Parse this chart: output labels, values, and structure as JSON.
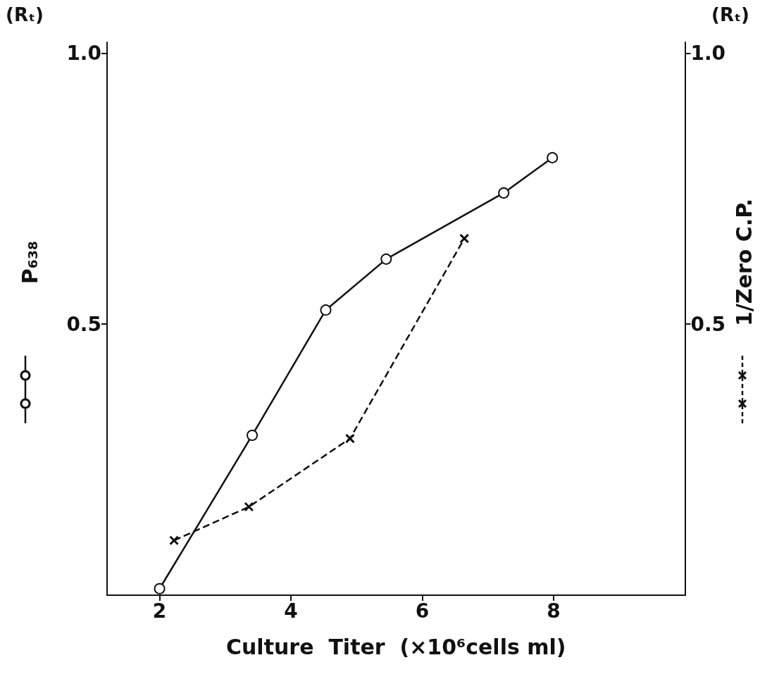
{
  "chart_data": {
    "type": "line",
    "xlabel": "Culture  Titer  (×10⁶cells ml)",
    "ylabel": "P₆₃₈",
    "y2label": "1/Zero C.P.",
    "annotations": [
      "(Rₜ)",
      "(Rₜ)"
    ],
    "xlim": [
      1.2,
      10
    ],
    "xticks": [
      2,
      4,
      6,
      8
    ],
    "ylim": [
      0,
      1.02
    ],
    "yticks": [
      0.5,
      {
        "value": 1,
        "label": "1.0"
      }
    ],
    "y2lim": [
      0,
      1.02
    ],
    "y2ticks": [
      0.5,
      {
        "value": 1,
        "label": "1.0"
      }
    ],
    "grid": false,
    "series": [
      {
        "color": "#111111",
        "marker": "circle",
        "line_style": "solid",
        "x": [
          2,
          3.41,
          4.53,
          5.45,
          7.24,
          7.98
        ],
        "values": [
          0.012,
          0.295,
          0.526,
          0.62,
          0.742,
          0.807
        ]
      },
      {
        "color": "#111111",
        "marker": "cross",
        "line_style": "dashed",
        "axis": "y2",
        "x": [
          2.22,
          3.36,
          4.9,
          6.64
        ],
        "values": [
          0.101,
          0.163,
          0.289,
          0.658
        ]
      }
    ]
  }
}
